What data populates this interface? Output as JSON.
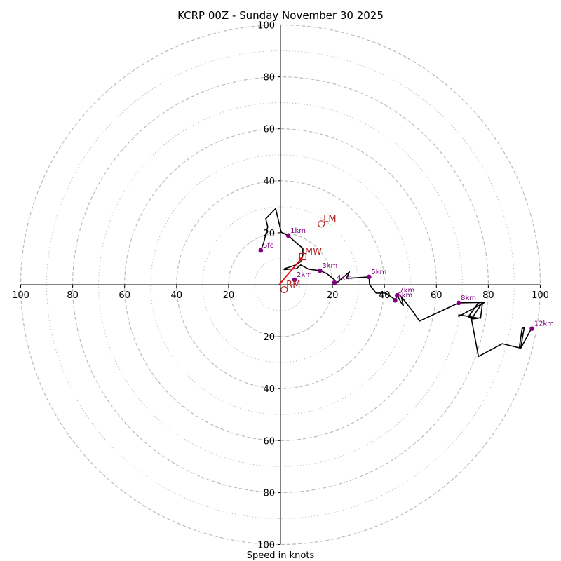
{
  "chart_data": {
    "type": "hodograph",
    "title": "KCRP 00Z - Sunday November 30 2025",
    "xlabel": "Speed in knots",
    "units": "knots",
    "range": [
      -100,
      100
    ],
    "rings_dashed": [
      20,
      40,
      60,
      80,
      100
    ],
    "rings_dotted": [
      10,
      30,
      50,
      70,
      90
    ],
    "x_ticks": [
      {
        "value": -100,
        "label": "100"
      },
      {
        "value": -80,
        "label": "80"
      },
      {
        "value": -60,
        "label": "60"
      },
      {
        "value": -40,
        "label": "40"
      },
      {
        "value": -20,
        "label": "20"
      },
      {
        "value": 20,
        "label": "20"
      },
      {
        "value": 40,
        "label": "40"
      },
      {
        "value": 60,
        "label": "60"
      },
      {
        "value": 80,
        "label": "80"
      },
      {
        "value": 100,
        "label": "100"
      }
    ],
    "y_ticks": [
      {
        "value": 100,
        "label": "100"
      },
      {
        "value": 80,
        "label": "80"
      },
      {
        "value": 60,
        "label": "60"
      },
      {
        "value": 40,
        "label": "40"
      },
      {
        "value": 20,
        "label": "20"
      },
      {
        "value": -20,
        "label": "20"
      },
      {
        "value": -40,
        "label": "40"
      },
      {
        "value": -60,
        "label": "60"
      },
      {
        "value": -80,
        "label": "80"
      },
      {
        "value": -100,
        "label": "100"
      }
    ],
    "trace": [
      [
        -7.6,
        13.2
      ],
      [
        -6.5,
        16
      ],
      [
        -4.9,
        22.3
      ],
      [
        -5.7,
        25.4
      ],
      [
        -1.9,
        29.3
      ],
      [
        0.3,
        20.2
      ],
      [
        3.0,
        18.9
      ],
      [
        6.0,
        16.2
      ],
      [
        8.6,
        14
      ],
      [
        8.6,
        11.4
      ],
      [
        7.8,
        8.9
      ],
      [
        5.9,
        7.6
      ],
      [
        3.2,
        6.7
      ],
      [
        1.6,
        6.2
      ],
      [
        1.4,
        5.8
      ],
      [
        6.2,
        6.2
      ],
      [
        7.8,
        7.6
      ],
      [
        10.8,
        6.0
      ],
      [
        15.2,
        5.4
      ],
      [
        17.8,
        4.3
      ],
      [
        20.8,
        1.9
      ],
      [
        20.8,
        0.8
      ],
      [
        22.2,
        1.1
      ],
      [
        26.5,
        4.9
      ],
      [
        25.4,
        2.4
      ],
      [
        34.1,
        3.0
      ],
      [
        34.3,
        0
      ],
      [
        36.8,
        -3.2
      ],
      [
        40.5,
        -3.2
      ],
      [
        43.5,
        -5.3
      ],
      [
        44.1,
        -6.0
      ],
      [
        44.9,
        -4.1
      ],
      [
        46.5,
        -7.0
      ],
      [
        47.3,
        -8.1
      ],
      [
        46.5,
        -4.6
      ],
      [
        51.1,
        -10.5
      ],
      [
        53.5,
        -14.0
      ],
      [
        68.6,
        -7.0
      ],
      [
        78.6,
        -6.8
      ],
      [
        68.6,
        -12.2
      ],
      [
        68.6,
        -11.6
      ],
      [
        72.4,
        -12.2
      ],
      [
        73.5,
        -13.2
      ],
      [
        77.8,
        -6.8
      ],
      [
        76.2,
        -7.0
      ],
      [
        72.4,
        -12.2
      ],
      [
        76.2,
        -12.9
      ],
      [
        77.0,
        -12.6
      ],
      [
        77.0,
        -12.9
      ],
      [
        77.8,
        -6.8
      ],
      [
        76.2,
        -6.8
      ],
      [
        72.4,
        -12.4
      ],
      [
        76.2,
        -12.9
      ],
      [
        72.4,
        -12.4
      ],
      [
        76.2,
        -12.9
      ],
      [
        73.5,
        -13.2
      ],
      [
        76.2,
        -27.6
      ],
      [
        85.4,
        -22.7
      ],
      [
        91.9,
        -24.3
      ],
      [
        93.0,
        -16.8
      ],
      [
        93.8,
        -16.6
      ],
      [
        92.4,
        -24.6
      ],
      [
        96.2,
        -17.6
      ],
      [
        96.8,
        -16.9
      ]
    ],
    "heights": [
      {
        "label": "Sfc",
        "u": -7.6,
        "v": 13.2
      },
      {
        "label": "1km",
        "u": 3.0,
        "v": 18.9
      },
      {
        "label": "2km",
        "u": 5.4,
        "v": 1.9
      },
      {
        "label": "3km",
        "u": 15.2,
        "v": 5.4
      },
      {
        "label": "4km",
        "u": 20.8,
        "v": 0.8
      },
      {
        "label": "5km",
        "u": 34.1,
        "v": 3.0
      },
      {
        "label": "6km",
        "u": 44.1,
        "v": -6.0
      },
      {
        "label": "7km",
        "u": 44.9,
        "v": -4.1
      },
      {
        "label": "8km",
        "u": 68.6,
        "v": -7.0
      },
      {
        "label": "12km",
        "u": 96.8,
        "v": -16.9
      }
    ],
    "motions": [
      {
        "label": "LM",
        "u": 15.7,
        "v": 23.4,
        "marker": "circle"
      },
      {
        "label": "MW",
        "u": 8.6,
        "v": 10.8,
        "marker": "square"
      },
      {
        "label": "RM",
        "u": 1.4,
        "v": -1.9,
        "marker": "circle"
      }
    ],
    "shear_vector": {
      "from": [
        -0.5,
        0
      ],
      "to": [
        8.6,
        10.8
      ]
    },
    "colors": {
      "trace": "#000000",
      "height_marker": "#800080",
      "motion": "#b22222",
      "shear": "#ff0000",
      "grid": "#bbbbbb"
    }
  }
}
